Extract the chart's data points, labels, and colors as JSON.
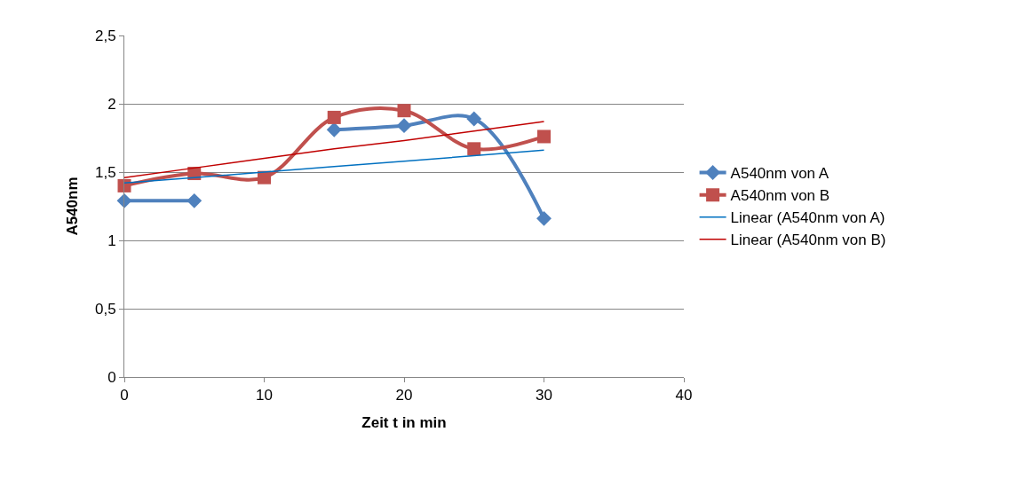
{
  "chart_data": {
    "type": "line",
    "xlabel": "Zeit t in min",
    "ylabel": "A540nm",
    "x": [
      0,
      5,
      10,
      15,
      20,
      25,
      30
    ],
    "series": [
      {
        "name": "A540nm von A",
        "color": "#4f81bd",
        "values": [
          1.29,
          1.29,
          null,
          1.81,
          1.84,
          1.89,
          1.16
        ],
        "marker": "diamond"
      },
      {
        "name": "A540nm von B",
        "color": "#c0504d",
        "values": [
          1.4,
          1.49,
          1.46,
          1.9,
          1.95,
          1.67,
          1.76
        ],
        "marker": "square"
      },
      {
        "name": "Linear (A540nm von A)",
        "color": "#0070c0",
        "values": [
          1.42,
          1.46,
          1.5,
          1.54,
          1.58,
          1.62,
          1.66
        ],
        "marker": "none"
      },
      {
        "name": "Linear (A540nm von B)",
        "color": "#c00000",
        "values": [
          1.46,
          1.53,
          1.6,
          1.67,
          1.73,
          1.8,
          1.87
        ],
        "marker": "none"
      }
    ],
    "xlim": [
      0,
      40
    ],
    "xticks": [
      0,
      10,
      20,
      30,
      40
    ],
    "ylim": [
      0,
      2.5
    ],
    "yticks": [
      {
        "value": 0,
        "label": "0"
      },
      {
        "value": 0.5,
        "label": "0,5"
      },
      {
        "value": 1,
        "label": "1"
      },
      {
        "value": 1.5,
        "label": "1,5"
      },
      {
        "value": 2,
        "label": "2"
      },
      {
        "value": 2.5,
        "label": "2,5"
      }
    ],
    "grid": "y",
    "legend": "right"
  }
}
